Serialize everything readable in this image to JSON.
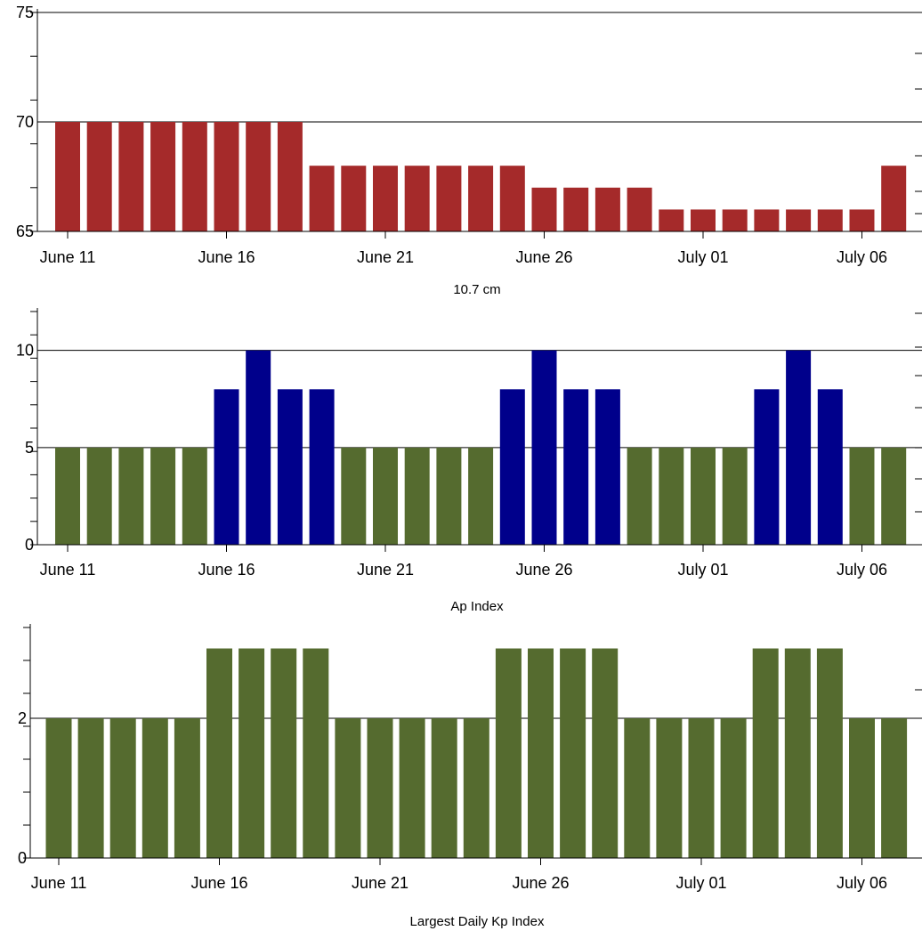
{
  "chart_data": [
    {
      "type": "bar",
      "xlabel": "10.7 cm",
      "ylabel": "",
      "ylim": [
        65,
        75
      ],
      "yticks": [
        65,
        70,
        75
      ],
      "x_start": "June 11",
      "x": [
        "June 11",
        "June 12",
        "June 13",
        "June 14",
        "June 15",
        "June 16",
        "June 17",
        "June 18",
        "June 19",
        "June 20",
        "June 21",
        "June 22",
        "June 23",
        "June 24",
        "June 25",
        "June 26",
        "June 27",
        "June 28",
        "June 29",
        "June 30",
        "July 01",
        "July 02",
        "July 03",
        "July 04",
        "July 05",
        "July 06",
        "July 07"
      ],
      "xticks": [
        "June 11",
        "June 16",
        "June 21",
        "June 26",
        "July 01",
        "July 06"
      ],
      "values": [
        70,
        70,
        70,
        70,
        70,
        70,
        70,
        70,
        68,
        68,
        68,
        68,
        68,
        68,
        68,
        67,
        67,
        67,
        67,
        66,
        66,
        66,
        66,
        66,
        66,
        66,
        68
      ],
      "colors": {
        "default": "#a52a2a"
      },
      "grid": "horizontal at labeled ticks"
    },
    {
      "type": "bar",
      "xlabel": "Ap Index",
      "ylabel": "",
      "ylim": [
        0,
        12
      ],
      "yticks": [
        0,
        5,
        10
      ],
      "x": [
        "June 11",
        "June 12",
        "June 13",
        "June 14",
        "June 15",
        "June 16",
        "June 17",
        "June 18",
        "June 19",
        "June 20",
        "June 21",
        "June 22",
        "June 23",
        "June 24",
        "June 25",
        "June 26",
        "June 27",
        "June 28",
        "June 29",
        "June 30",
        "July 01",
        "July 02",
        "July 03",
        "July 04",
        "July 05",
        "July 06",
        "July 07"
      ],
      "xticks": [
        "June 11",
        "June 16",
        "June 21",
        "June 26",
        "July 01",
        "July 06"
      ],
      "values": [
        5,
        5,
        5,
        5,
        5,
        8,
        10,
        8,
        8,
        5,
        5,
        5,
        5,
        5,
        8,
        10,
        8,
        8,
        5,
        5,
        5,
        5,
        8,
        10,
        8,
        5,
        5
      ],
      "colors": {
        "low": "#556b2f",
        "high": "#00008b"
      },
      "color_threshold": 7,
      "grid": "horizontal at labeled ticks"
    },
    {
      "type": "bar",
      "xlabel": "Largest Daily Kp Index",
      "ylabel": "",
      "ylim": [
        0,
        3.3
      ],
      "yticks": [
        0,
        2
      ],
      "x": [
        "June 11",
        "June 12",
        "June 13",
        "June 14",
        "June 15",
        "June 16",
        "June 17",
        "June 18",
        "June 19",
        "June 20",
        "June 21",
        "June 22",
        "June 23",
        "June 24",
        "June 25",
        "June 26",
        "June 27",
        "June 28",
        "June 29",
        "June 30",
        "July 01",
        "July 02",
        "July 03",
        "July 04",
        "July 05",
        "July 06",
        "July 07"
      ],
      "xticks": [
        "June 11",
        "June 16",
        "June 21",
        "June 26",
        "July 01",
        "July 06"
      ],
      "values": [
        2,
        2,
        2,
        2,
        2,
        3,
        3,
        3,
        3,
        2,
        2,
        2,
        2,
        2,
        3,
        3,
        3,
        3,
        2,
        2,
        2,
        2,
        3,
        3,
        3,
        2,
        2
      ],
      "colors": {
        "default": "#556b2f"
      },
      "grid": "horizontal at labeled ticks"
    }
  ]
}
